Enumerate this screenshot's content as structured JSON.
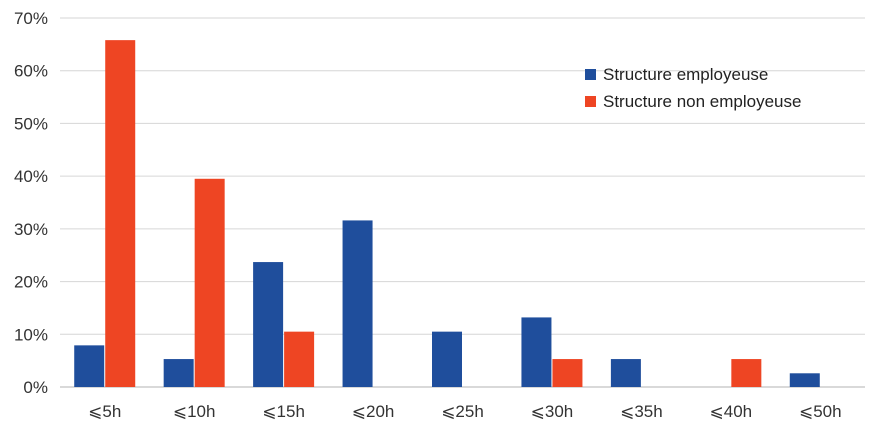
{
  "chart_data": {
    "type": "bar",
    "categories": [
      "⩽5h",
      "⩽10h",
      "⩽15h",
      "⩽20h",
      "⩽25h",
      "⩽30h",
      "⩽35h",
      "⩽40h",
      "⩽50h"
    ],
    "series": [
      {
        "name": "Structure employeuse",
        "color": "#1f4e9c",
        "values": [
          7.9,
          5.3,
          23.7,
          31.6,
          10.5,
          13.2,
          5.3,
          0,
          2.6
        ]
      },
      {
        "name": "Structure non employeuse",
        "color": "#ee4523",
        "values": [
          65.8,
          39.5,
          10.5,
          0,
          0,
          5.3,
          0,
          5.3,
          0
        ]
      }
    ],
    "y_ticks": [
      "0%",
      "10%",
      "20%",
      "30%",
      "40%",
      "50%",
      "60%",
      "70%"
    ],
    "ylim": [
      0,
      70
    ],
    "grid": true,
    "legend_position": "top-right"
  }
}
